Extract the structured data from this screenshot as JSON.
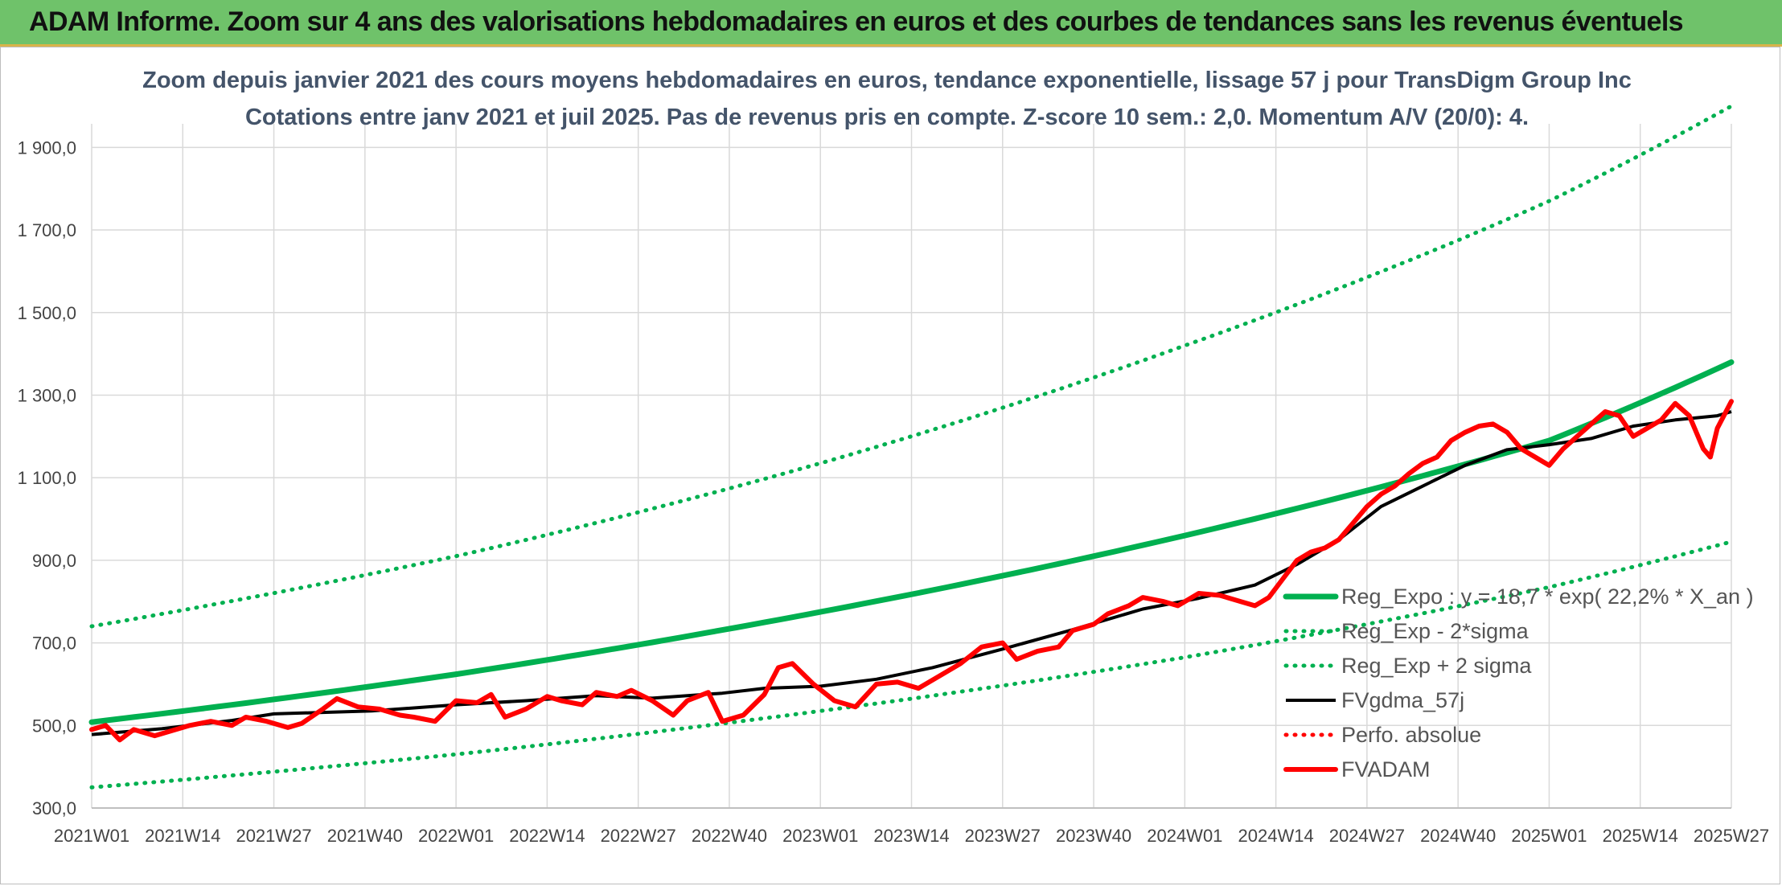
{
  "banner": {
    "title": "ADAM Informe. Zoom sur 4 ans des valorisations hebdomadaires en euros et des courbes de tendances sans les revenus éventuels"
  },
  "chart_data": {
    "type": "line",
    "title": "Zoom depuis janvier 2021 des cours moyens hebdomadaires en euros, tendance exponentielle, lissage 57 j pour TransDigm Group Inc",
    "subtitle": "Cotations entre janv 2021 et juil 2025. Pas de revenus pris en compte. Z-score 10 sem.: 2,0. Momentum A/V (20/0): 4.",
    "xlabel": "",
    "ylabel": "",
    "ylim": [
      300,
      2000
    ],
    "yticks": [
      300,
      500,
      700,
      900,
      1100,
      1300,
      1500,
      1700,
      1900
    ],
    "ytick_labels": [
      "300,0",
      "500,0",
      "700,0",
      "900,0",
      "1 100,0",
      "1 300,0",
      "1 500,0",
      "1 700,0",
      "1 900,0"
    ],
    "x_categories": [
      "2021W01",
      "2021W14",
      "2021W27",
      "2021W40",
      "2022W01",
      "2022W14",
      "2022W27",
      "2022W40",
      "2023W01",
      "2023W14",
      "2023W27",
      "2023W40",
      "2024W01",
      "2024W14",
      "2024W27",
      "2024W40",
      "2025W01",
      "2025W14",
      "2025W27"
    ],
    "grid": true,
    "legend_position": "right",
    "series": [
      {
        "name": "Reg_Expo : y = 18,7 * exp( 22,2% *  X_an )",
        "style": "solid-thick",
        "color": "#00b050",
        "points": [
          [
            0,
            508
          ],
          [
            52,
            624
          ],
          [
            104,
            775
          ],
          [
            156,
            960
          ],
          [
            208,
            1190
          ],
          [
            234,
            1380
          ]
        ]
      },
      {
        "name": "Reg_Exp - 2*sigma",
        "style": "dotted",
        "color": "#00b050",
        "points": [
          [
            0,
            350
          ],
          [
            52,
            430
          ],
          [
            104,
            535
          ],
          [
            156,
            665
          ],
          [
            208,
            835
          ],
          [
            234,
            945
          ]
        ]
      },
      {
        "name": "Reg_Exp + 2 sigma",
        "style": "dotted",
        "color": "#00b050",
        "points": [
          [
            0,
            740
          ],
          [
            52,
            910
          ],
          [
            104,
            1135
          ],
          [
            156,
            1420
          ],
          [
            208,
            1770
          ],
          [
            234,
            2000
          ]
        ]
      },
      {
        "name": "FVgdma_57j",
        "style": "solid",
        "color": "#000000",
        "points": [
          [
            0,
            478
          ],
          [
            10,
            492
          ],
          [
            20,
            512
          ],
          [
            26,
            528
          ],
          [
            40,
            535
          ],
          [
            52,
            550
          ],
          [
            62,
            560
          ],
          [
            72,
            572
          ],
          [
            80,
            566
          ],
          [
            90,
            578
          ],
          [
            96,
            590
          ],
          [
            104,
            595
          ],
          [
            112,
            612
          ],
          [
            120,
            640
          ],
          [
            130,
            685
          ],
          [
            140,
            732
          ],
          [
            150,
            782
          ],
          [
            158,
            808
          ],
          [
            166,
            840
          ],
          [
            172,
            890
          ],
          [
            178,
            950
          ],
          [
            184,
            1030
          ],
          [
            190,
            1080
          ],
          [
            196,
            1130
          ],
          [
            202,
            1168
          ],
          [
            208,
            1180
          ],
          [
            214,
            1195
          ],
          [
            220,
            1225
          ],
          [
            226,
            1240
          ],
          [
            232,
            1250
          ],
          [
            234,
            1260
          ]
        ]
      },
      {
        "name": "Perfo. absolue",
        "style": "dotted",
        "color": "#ff0000",
        "points": []
      },
      {
        "name": "FVADAM",
        "style": "solid-thick",
        "color": "#ff0000",
        "points": [
          [
            0,
            490
          ],
          [
            2,
            500
          ],
          [
            4,
            465
          ],
          [
            6,
            490
          ],
          [
            9,
            475
          ],
          [
            12,
            490
          ],
          [
            14,
            500
          ],
          [
            17,
            510
          ],
          [
            20,
            500
          ],
          [
            22,
            520
          ],
          [
            25,
            510
          ],
          [
            28,
            495
          ],
          [
            30,
            505
          ],
          [
            33,
            540
          ],
          [
            35,
            565
          ],
          [
            38,
            545
          ],
          [
            41,
            540
          ],
          [
            44,
            525
          ],
          [
            46,
            520
          ],
          [
            49,
            510
          ],
          [
            52,
            560
          ],
          [
            55,
            555
          ],
          [
            57,
            575
          ],
          [
            59,
            520
          ],
          [
            62,
            540
          ],
          [
            65,
            570
          ],
          [
            67,
            560
          ],
          [
            70,
            550
          ],
          [
            72,
            580
          ],
          [
            75,
            570
          ],
          [
            77,
            585
          ],
          [
            80,
            560
          ],
          [
            83,
            525
          ],
          [
            85,
            560
          ],
          [
            88,
            580
          ],
          [
            90,
            510
          ],
          [
            93,
            525
          ],
          [
            96,
            575
          ],
          [
            98,
            640
          ],
          [
            100,
            650
          ],
          [
            103,
            600
          ],
          [
            106,
            560
          ],
          [
            109,
            545
          ],
          [
            112,
            600
          ],
          [
            115,
            605
          ],
          [
            118,
            590
          ],
          [
            121,
            620
          ],
          [
            124,
            650
          ],
          [
            127,
            690
          ],
          [
            130,
            700
          ],
          [
            132,
            660
          ],
          [
            135,
            680
          ],
          [
            138,
            690
          ],
          [
            140,
            730
          ],
          [
            143,
            745
          ],
          [
            145,
            770
          ],
          [
            148,
            790
          ],
          [
            150,
            810
          ],
          [
            153,
            800
          ],
          [
            155,
            790
          ],
          [
            158,
            820
          ],
          [
            161,
            815
          ],
          [
            164,
            800
          ],
          [
            166,
            790
          ],
          [
            168,
            810
          ],
          [
            170,
            855
          ],
          [
            172,
            900
          ],
          [
            174,
            920
          ],
          [
            176,
            930
          ],
          [
            178,
            950
          ],
          [
            180,
            990
          ],
          [
            182,
            1030
          ],
          [
            184,
            1060
          ],
          [
            186,
            1080
          ],
          [
            188,
            1110
          ],
          [
            190,
            1135
          ],
          [
            192,
            1150
          ],
          [
            194,
            1190
          ],
          [
            196,
            1210
          ],
          [
            198,
            1225
          ],
          [
            200,
            1230
          ],
          [
            202,
            1210
          ],
          [
            204,
            1170
          ],
          [
            206,
            1150
          ],
          [
            208,
            1130
          ],
          [
            210,
            1170
          ],
          [
            212,
            1200
          ],
          [
            214,
            1230
          ],
          [
            216,
            1260
          ],
          [
            218,
            1250
          ],
          [
            220,
            1200
          ],
          [
            222,
            1220
          ],
          [
            224,
            1240
          ],
          [
            226,
            1280
          ],
          [
            228,
            1250
          ],
          [
            230,
            1170
          ],
          [
            231,
            1150
          ],
          [
            232,
            1220
          ],
          [
            234,
            1285
          ]
        ]
      }
    ]
  }
}
